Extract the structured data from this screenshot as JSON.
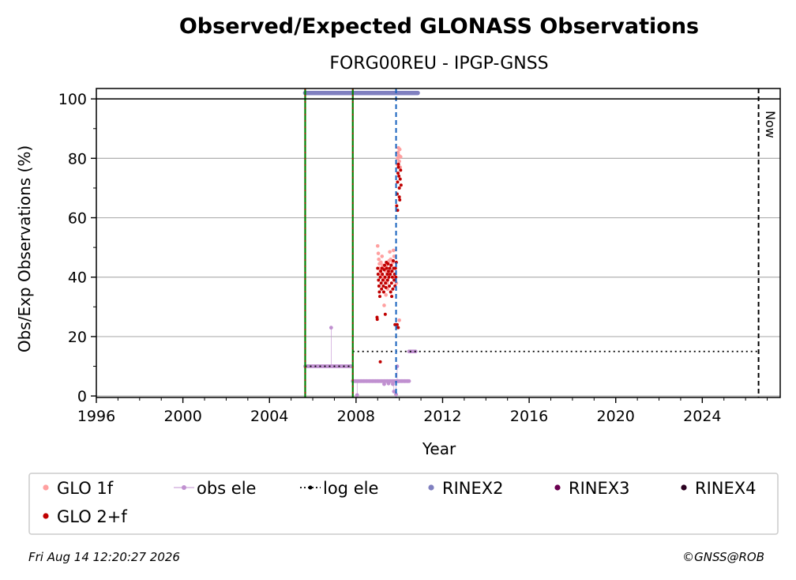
{
  "chart_data": {
    "type": "scatter",
    "title": "Observed/Expected GLONASS Observations",
    "subtitle": "FORG00REU - IPGP-GNSS",
    "xlabel": "Year",
    "ylabel": "Obs/Exp Observations (%)",
    "xlim": [
      1996,
      2027.6
    ],
    "ylim": [
      -0.5,
      103.5
    ],
    "x_ticks": [
      1996,
      2000,
      2004,
      2008,
      2012,
      2016,
      2020,
      2024
    ],
    "y_ticks": [
      0,
      20,
      40,
      60,
      80,
      100
    ],
    "grid": "horizontal",
    "legend_placement": "bottom",
    "now_label": "Now",
    "now_x": 2026.6,
    "reference_line_y": 100,
    "vertical_markers": [
      {
        "x": 2005.65,
        "color": "#008000",
        "style": "dash-dot"
      },
      {
        "x": 2007.85,
        "color": "#008000",
        "style": "dash-dot"
      },
      {
        "x": 2009.85,
        "color": "#1560bd",
        "style": "dashed"
      }
    ],
    "colors": {
      "glo1f": "#ffa0a0",
      "glo2f": "#c00000",
      "obs_ele": "#c090d0",
      "log_ele": "#000000",
      "rinex2": "#8080c0",
      "rinex3": "#6a0050",
      "rinex4": "#2a0020"
    },
    "series": [
      {
        "name": "GLO 1f",
        "key": "glo1f",
        "points": [
          [
            2009.0,
            50.5
          ],
          [
            2009.03,
            48
          ],
          [
            2009.05,
            46
          ],
          [
            2009.08,
            44.5
          ],
          [
            2009.1,
            43
          ],
          [
            2009.12,
            42
          ],
          [
            2009.15,
            45
          ],
          [
            2009.18,
            41
          ],
          [
            2009.2,
            47
          ],
          [
            2009.23,
            44
          ],
          [
            2009.26,
            40
          ],
          [
            2009.3,
            43
          ],
          [
            2009.33,
            39
          ],
          [
            2009.36,
            42
          ],
          [
            2009.4,
            44
          ],
          [
            2009.43,
            38
          ],
          [
            2009.46,
            36
          ],
          [
            2009.5,
            41
          ],
          [
            2009.53,
            45.5
          ],
          [
            2009.56,
            48.5
          ],
          [
            2009.6,
            46
          ],
          [
            2009.63,
            44
          ],
          [
            2009.66,
            42
          ],
          [
            2009.7,
            45
          ],
          [
            2009.73,
            49
          ],
          [
            2009.76,
            47
          ],
          [
            2009.8,
            43
          ],
          [
            2009.83,
            40
          ],
          [
            2009.86,
            38
          ],
          [
            2009.3,
            30.5
          ],
          [
            2009.38,
            34
          ],
          [
            2010.0,
            25.5
          ],
          [
            2009.9,
            78
          ],
          [
            2009.92,
            80
          ],
          [
            2009.94,
            82
          ],
          [
            2009.96,
            83.5
          ],
          [
            2009.98,
            81
          ],
          [
            2010.0,
            79
          ],
          [
            2010.02,
            83
          ],
          [
            2010.04,
            77
          ],
          [
            2010.06,
            80.5
          ]
        ]
      },
      {
        "name": "GLO 2+f",
        "key": "glo2f",
        "points": [
          [
            2009.0,
            43
          ],
          [
            2009.02,
            41
          ],
          [
            2009.04,
            39
          ],
          [
            2009.06,
            37
          ],
          [
            2009.08,
            35
          ],
          [
            2009.1,
            33.5
          ],
          [
            2009.12,
            40
          ],
          [
            2009.14,
            42
          ],
          [
            2009.16,
            38
          ],
          [
            2009.18,
            36
          ],
          [
            2009.2,
            43
          ],
          [
            2009.22,
            41
          ],
          [
            2009.24,
            39
          ],
          [
            2009.26,
            37
          ],
          [
            2009.28,
            35
          ],
          [
            2009.3,
            42.5
          ],
          [
            2009.32,
            44
          ],
          [
            2009.34,
            40
          ],
          [
            2009.36,
            38
          ],
          [
            2009.38,
            36.5
          ],
          [
            2009.4,
            45
          ],
          [
            2009.42,
            43
          ],
          [
            2009.44,
            41
          ],
          [
            2009.46,
            39
          ],
          [
            2009.48,
            44.5
          ],
          [
            2009.5,
            42
          ],
          [
            2009.52,
            40
          ],
          [
            2009.54,
            37
          ],
          [
            2009.56,
            43
          ],
          [
            2009.58,
            41
          ],
          [
            2009.6,
            35
          ],
          [
            2009.62,
            44
          ],
          [
            2009.64,
            38
          ],
          [
            2009.66,
            42
          ],
          [
            2009.68,
            40
          ],
          [
            2009.7,
            36
          ],
          [
            2009.72,
            45.5
          ],
          [
            2009.74,
            43
          ],
          [
            2009.76,
            39
          ],
          [
            2009.78,
            41
          ],
          [
            2009.8,
            37
          ],
          [
            2009.82,
            43
          ],
          [
            2009.84,
            40
          ],
          [
            2009.86,
            45
          ],
          [
            2008.97,
            26.5
          ],
          [
            2008.98,
            25.8
          ],
          [
            2009.12,
            11.5
          ],
          [
            2009.35,
            27.5
          ],
          [
            2009.65,
            33.5
          ],
          [
            2009.8,
            24
          ],
          [
            2009.9,
            24
          ],
          [
            2009.95,
            23
          ],
          [
            2009.88,
            64
          ],
          [
            2009.9,
            68
          ],
          [
            2009.92,
            72
          ],
          [
            2009.94,
            75
          ],
          [
            2009.96,
            77
          ],
          [
            2009.98,
            74
          ],
          [
            2010.0,
            70
          ],
          [
            2010.02,
            66
          ],
          [
            2010.04,
            73
          ],
          [
            2010.06,
            76
          ],
          [
            2010.08,
            71
          ],
          [
            2009.92,
            62.5
          ],
          [
            2009.96,
            78
          ],
          [
            2010.0,
            67
          ]
        ]
      },
      {
        "name": "obs ele",
        "key": "obs_ele",
        "segments": [
          {
            "x0": 2005.65,
            "x1": 2007.85,
            "y": 10,
            "step": 0.06
          },
          {
            "x0": 2007.85,
            "x1": 2009.95,
            "y": 5,
            "step": 0.05
          },
          {
            "x0": 2009.95,
            "x1": 2010.45,
            "y": 5,
            "step": 0.05
          },
          {
            "x0": 2010.45,
            "x1": 2010.75,
            "y": 15,
            "step": 0.05
          }
        ],
        "extra_points": [
          [
            2006.85,
            23
          ],
          [
            2008.05,
            0.3
          ],
          [
            2009.75,
            1.5
          ],
          [
            2009.85,
            0.5
          ],
          [
            2009.9,
            10
          ],
          [
            2009.3,
            4
          ],
          [
            2009.5,
            4.2
          ],
          [
            2009.7,
            4
          ]
        ]
      },
      {
        "name": "log ele",
        "key": "log_ele",
        "segments": [
          {
            "x0": 2005.65,
            "x1": 2007.85,
            "y": 10
          },
          {
            "x0": 2007.85,
            "x1": 2026.6,
            "y": 15
          }
        ]
      },
      {
        "name": "RINEX2",
        "key": "rinex2",
        "segments": [
          {
            "x0": 2005.65,
            "x1": 2010.85,
            "y": 102
          }
        ]
      },
      {
        "name": "RINEX3",
        "key": "rinex3",
        "points": []
      },
      {
        "name": "RINEX4",
        "key": "rinex4",
        "points": []
      }
    ],
    "legend": [
      {
        "label": "GLO 1f",
        "key": "glo1f",
        "marker": "dot"
      },
      {
        "label": "obs ele",
        "key": "obs_ele",
        "marker": "line-dot"
      },
      {
        "label": "log ele",
        "key": "log_ele",
        "marker": "dotted-line"
      },
      {
        "label": "RINEX2",
        "key": "rinex2",
        "marker": "dot"
      },
      {
        "label": "RINEX3",
        "key": "rinex3",
        "marker": "dot"
      },
      {
        "label": "RINEX4",
        "key": "rinex4",
        "marker": "dot"
      },
      {
        "label": "GLO 2+f",
        "key": "glo2f",
        "marker": "dot"
      }
    ]
  },
  "footer": {
    "timestamp": "Fri Aug 14 12:20:27 2026",
    "copyright": "©GNSS@ROB"
  }
}
